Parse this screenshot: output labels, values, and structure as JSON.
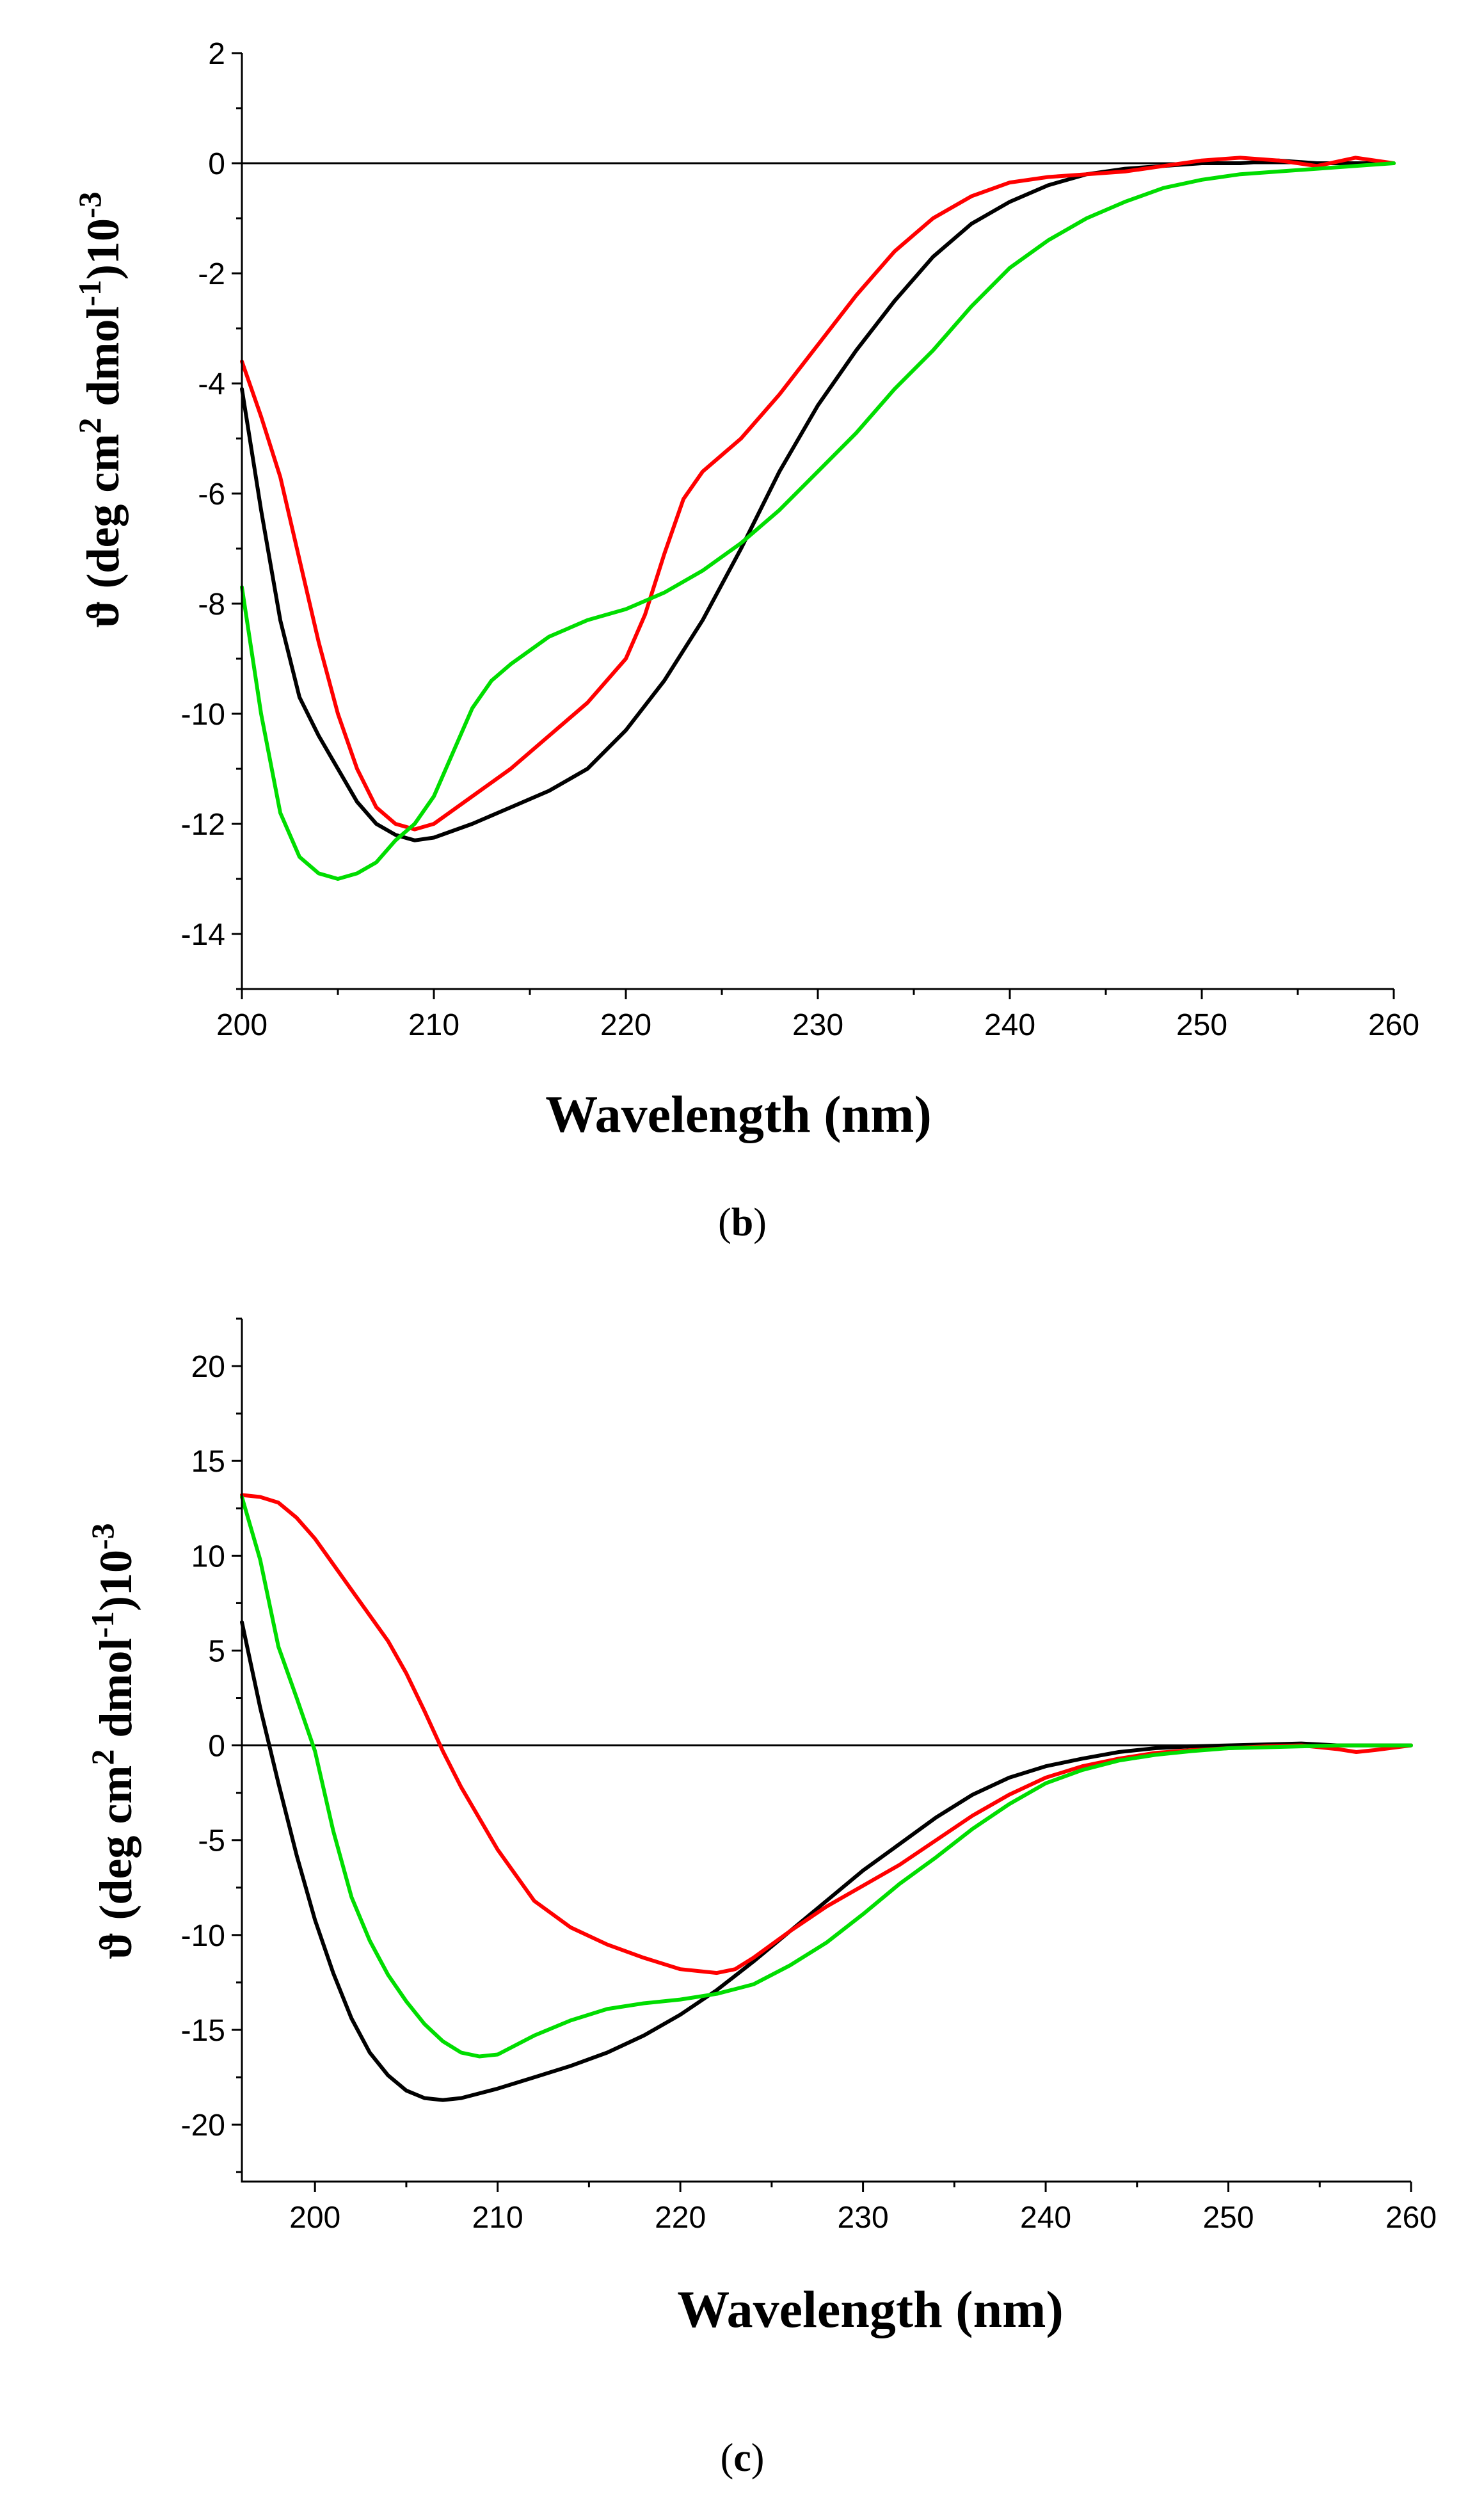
{
  "chart_data": [
    {
      "panel": "b",
      "type": "line",
      "caption": "(b)",
      "caption_letter": "b",
      "title": "",
      "xlabel": "Wavelength (nm)",
      "ylabel": {
        "prefix": "ϑ (deg cm",
        "sup1": "2",
        "mid": " dmol",
        "sup2": "-1",
        "close": ")10",
        "sup3": "-3"
      },
      "xlim": [
        200,
        260
      ],
      "ylim": [
        -15,
        2
      ],
      "x_ticks": [
        200,
        210,
        220,
        230,
        240,
        250,
        260
      ],
      "x_tick_labels": [
        "200",
        "210",
        "220",
        "230",
        "240",
        "250",
        "260"
      ],
      "y_ticks": [
        -14,
        -12,
        -10,
        -8,
        -6,
        -4,
        -2,
        0,
        2
      ],
      "y_tick_labels": [
        "-14",
        "-12",
        "-10",
        "-8",
        "-6",
        "-4",
        "-2",
        "0",
        "2"
      ],
      "y_minor_step": 1,
      "x_minor_step": 5,
      "zero_line": true,
      "grid": false,
      "series": [
        {
          "name": "black",
          "color": "#000000",
          "x": [
            200,
            201,
            202,
            203,
            204,
            205,
            206,
            207,
            208,
            209,
            210,
            212,
            214,
            216,
            218,
            220,
            222,
            224,
            226,
            228,
            230,
            232,
            234,
            236,
            238,
            240,
            242,
            244,
            246,
            248,
            250,
            252,
            254,
            256,
            258,
            260
          ],
          "y": [
            -4.1,
            -6.3,
            -8.3,
            -9.7,
            -10.4,
            -11.0,
            -11.6,
            -12.0,
            -12.2,
            -12.3,
            -12.25,
            -12.0,
            -11.7,
            -11.4,
            -11.0,
            -10.3,
            -9.4,
            -8.3,
            -7.0,
            -5.6,
            -4.4,
            -3.4,
            -2.5,
            -1.7,
            -1.1,
            -0.7,
            -0.4,
            -0.2,
            -0.1,
            -0.05,
            0.0,
            0.0,
            0.05,
            0.0,
            0.0,
            0.0
          ]
        },
        {
          "name": "red",
          "color": "#ff0000",
          "x": [
            200,
            201,
            202,
            203,
            204,
            205,
            206,
            207,
            208,
            209,
            210,
            212,
            214,
            216,
            218,
            220,
            221,
            222,
            223,
            224,
            225,
            226,
            228,
            230,
            232,
            234,
            236,
            238,
            240,
            242,
            244,
            246,
            248,
            250,
            252,
            254,
            256,
            258,
            260
          ],
          "y": [
            -3.6,
            -4.6,
            -5.7,
            -7.2,
            -8.7,
            -10.0,
            -11.0,
            -11.7,
            -12.0,
            -12.1,
            -12.0,
            -11.5,
            -11.0,
            -10.4,
            -9.8,
            -9.0,
            -8.2,
            -7.1,
            -6.1,
            -5.6,
            -5.3,
            -5.0,
            -4.2,
            -3.3,
            -2.4,
            -1.6,
            -1.0,
            -0.6,
            -0.35,
            -0.25,
            -0.2,
            -0.15,
            -0.05,
            0.05,
            0.1,
            0.05,
            -0.05,
            0.1,
            0.0
          ]
        },
        {
          "name": "green",
          "color": "#00dd00",
          "x": [
            200,
            201,
            202,
            203,
            204,
            205,
            206,
            207,
            208,
            209,
            210,
            211,
            212,
            213,
            214,
            216,
            218,
            220,
            222,
            224,
            226,
            228,
            230,
            232,
            234,
            236,
            238,
            240,
            242,
            244,
            246,
            248,
            250,
            252,
            254,
            256,
            258,
            260
          ],
          "y": [
            -7.7,
            -10.0,
            -11.8,
            -12.6,
            -12.9,
            -13.0,
            -12.9,
            -12.7,
            -12.3,
            -12.0,
            -11.5,
            -10.7,
            -9.9,
            -9.4,
            -9.1,
            -8.6,
            -8.3,
            -8.1,
            -7.8,
            -7.4,
            -6.9,
            -6.3,
            -5.6,
            -4.9,
            -4.1,
            -3.4,
            -2.6,
            -1.9,
            -1.4,
            -1.0,
            -0.7,
            -0.45,
            -0.3,
            -0.2,
            -0.15,
            -0.1,
            -0.05,
            0.0
          ]
        }
      ]
    },
    {
      "panel": "c",
      "type": "line",
      "caption": "(c)",
      "caption_letter": "c",
      "title": "",
      "xlabel": "Wavelength (nm)",
      "ylabel": {
        "prefix": "ϑ (deg cm",
        "sup1": "2",
        "mid": " dmol",
        "sup2": "-1",
        "close": ")10",
        "sup3": "-3"
      },
      "xlim": [
        196,
        260
      ],
      "ylim": [
        -23,
        22.5
      ],
      "x_ticks": [
        200,
        210,
        220,
        230,
        240,
        250,
        260
      ],
      "x_tick_labels": [
        "200",
        "210",
        "220",
        "230",
        "240",
        "250",
        "260"
      ],
      "y_ticks": [
        -20,
        -15,
        -10,
        -5,
        0,
        5,
        10,
        15,
        20
      ],
      "y_tick_labels": [
        "-20",
        "-15",
        "-10",
        "-5",
        "0",
        "5",
        "10",
        "15",
        "20"
      ],
      "y_minor_step": 2.5,
      "x_minor_step": 5,
      "zero_line": true,
      "grid": false,
      "series": [
        {
          "name": "black",
          "color": "#000000",
          "x": [
            196,
            197,
            198,
            199,
            200,
            201,
            202,
            203,
            204,
            205,
            206,
            207,
            208,
            210,
            212,
            214,
            216,
            218,
            220,
            222,
            224,
            226,
            228,
            230,
            232,
            234,
            236,
            238,
            240,
            242,
            244,
            246,
            248,
            250,
            252,
            254,
            256,
            258,
            260
          ],
          "y": [
            6.5,
            2.0,
            -2.0,
            -5.8,
            -9.2,
            -12.0,
            -14.4,
            -16.2,
            -17.4,
            -18.2,
            -18.6,
            -18.7,
            -18.6,
            -18.1,
            -17.5,
            -16.9,
            -16.2,
            -15.3,
            -14.2,
            -12.9,
            -11.4,
            -9.8,
            -8.2,
            -6.6,
            -5.2,
            -3.8,
            -2.6,
            -1.7,
            -1.1,
            -0.7,
            -0.35,
            -0.15,
            -0.05,
            0.0,
            0.05,
            0.1,
            0.0,
            0.0,
            0.0
          ]
        },
        {
          "name": "red",
          "color": "#ff0000",
          "x": [
            196,
            197,
            198,
            199,
            200,
            202,
            204,
            205,
            206,
            207,
            208,
            210,
            212,
            214,
            216,
            218,
            220,
            222,
            223,
            224,
            226,
            228,
            230,
            232,
            234,
            236,
            238,
            240,
            242,
            244,
            246,
            248,
            250,
            252,
            254,
            256,
            257,
            258,
            260
          ],
          "y": [
            13.2,
            13.1,
            12.8,
            12.0,
            10.9,
            8.2,
            5.5,
            3.8,
            1.8,
            -0.3,
            -2.2,
            -5.5,
            -8.2,
            -9.6,
            -10.5,
            -11.2,
            -11.8,
            -12.0,
            -11.8,
            -11.2,
            -9.8,
            -8.5,
            -7.4,
            -6.3,
            -5.0,
            -3.7,
            -2.6,
            -1.7,
            -1.1,
            -0.7,
            -0.4,
            -0.25,
            -0.15,
            -0.05,
            0.0,
            -0.2,
            -0.35,
            -0.25,
            0.0
          ]
        },
        {
          "name": "green",
          "color": "#00dd00",
          "x": [
            196,
            197,
            198,
            199,
            200,
            201,
            202,
            203,
            204,
            205,
            206,
            207,
            208,
            209,
            210,
            212,
            214,
            216,
            218,
            220,
            222,
            224,
            226,
            228,
            230,
            232,
            234,
            236,
            238,
            240,
            242,
            244,
            246,
            248,
            250,
            252,
            254,
            256,
            258,
            260
          ],
          "y": [
            13.1,
            9.8,
            5.2,
            2.5,
            -0.3,
            -4.5,
            -8.0,
            -10.3,
            -12.1,
            -13.5,
            -14.7,
            -15.6,
            -16.2,
            -16.4,
            -16.3,
            -15.3,
            -14.5,
            -13.9,
            -13.6,
            -13.4,
            -13.1,
            -12.6,
            -11.6,
            -10.4,
            -8.9,
            -7.3,
            -5.9,
            -4.4,
            -3.1,
            -2.0,
            -1.3,
            -0.8,
            -0.5,
            -0.3,
            -0.15,
            -0.1,
            -0.05,
            0.0,
            0.0,
            0.0
          ]
        }
      ]
    }
  ]
}
